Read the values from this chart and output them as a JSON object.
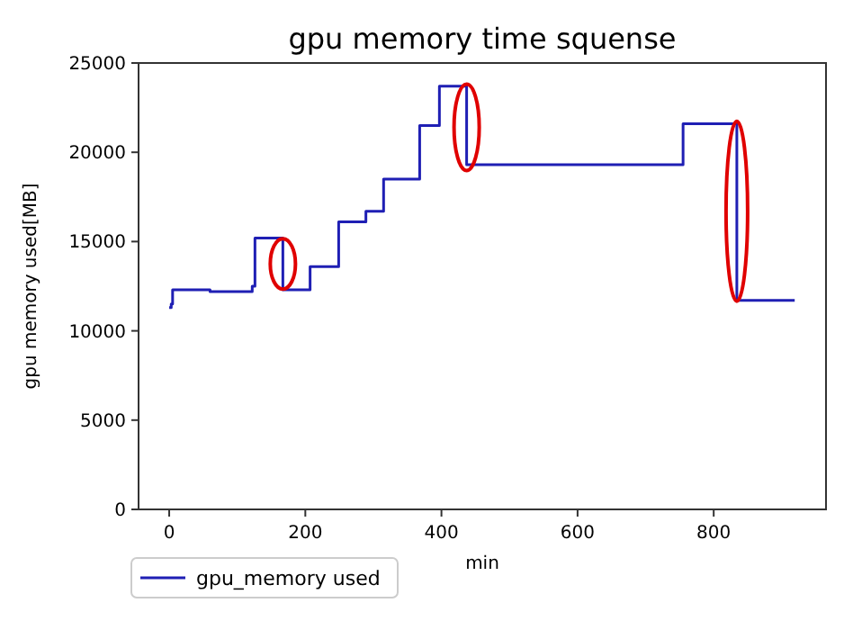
{
  "chart_data": {
    "type": "step",
    "title": "gpu memory time squense",
    "xlabel": "min",
    "ylabel": "gpu memory used[MB]",
    "x": [
      0,
      3,
      5,
      60,
      70,
      122,
      126,
      167,
      207,
      249,
      289,
      315,
      368,
      397,
      437,
      755,
      834,
      919
    ],
    "series": [
      {
        "name": "gpu_memory used",
        "color": "#1f1fb4",
        "values": [
          11300,
          11500,
          12300,
          12200,
          12200,
          12500,
          15200,
          12300,
          13600,
          16100,
          16700,
          18500,
          21500,
          23700,
          19300,
          21600,
          11700,
          11700
        ]
      }
    ],
    "xlim": [
      -45,
      965
    ],
    "ylim": [
      0,
      25000
    ],
    "xticks": [
      0,
      200,
      400,
      600,
      800
    ],
    "yticks": [
      0,
      5000,
      10000,
      15000,
      20000,
      25000
    ],
    "grid": false,
    "legend": "bottom left",
    "line_style": "solid",
    "marker": "none"
  }
}
